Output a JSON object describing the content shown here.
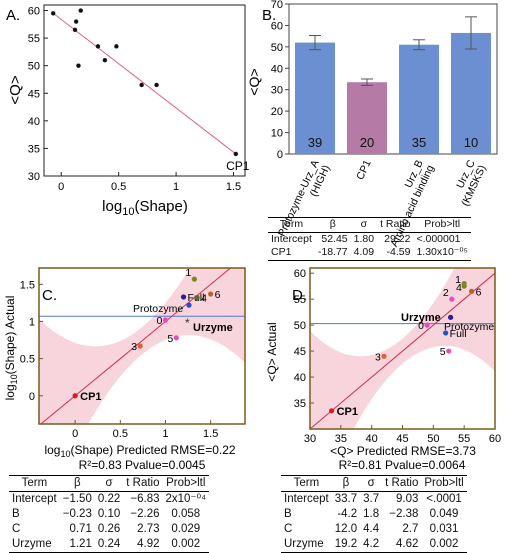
{
  "panels": {
    "A": {
      "letter": "A."
    },
    "B": {
      "letter": "B."
    },
    "C": {
      "letter": "C."
    },
    "D": {
      "letter": "D."
    }
  },
  "chart_data": [
    {
      "id": "A",
      "type": "scatter",
      "xlabel_prefix": "log",
      "xlabel_sub": "10",
      "xlabel_suffix": "(Shape)",
      "ylabel": "<Q>",
      "xlim": [
        -0.15,
        1.6
      ],
      "ylim": [
        30,
        61
      ],
      "x_ticks": [
        0,
        0.5,
        1,
        1.5
      ],
      "y_ticks": [
        30,
        35,
        40,
        45,
        50,
        55,
        60
      ],
      "points": [
        {
          "x": -0.07,
          "y": 59.5,
          "label": ""
        },
        {
          "x": 0.12,
          "y": 56.5,
          "label": ""
        },
        {
          "x": 0.13,
          "y": 58.0,
          "label": ""
        },
        {
          "x": 0.17,
          "y": 60.0,
          "label": ""
        },
        {
          "x": 0.15,
          "y": 50.0,
          "label": ""
        },
        {
          "x": 0.32,
          "y": 53.5,
          "label": ""
        },
        {
          "x": 0.38,
          "y": 51.0,
          "label": ""
        },
        {
          "x": 0.48,
          "y": 53.5,
          "label": ""
        },
        {
          "x": 0.7,
          "y": 46.5,
          "label": ""
        },
        {
          "x": 0.83,
          "y": 46.5,
          "label": ""
        },
        {
          "x": 1.52,
          "y": 34.0,
          "label": "CP1"
        }
      ],
      "fit_line": {
        "x": [
          -0.07,
          1.52
        ],
        "y": [
          59.5,
          34.0
        ]
      },
      "point_color": "#111111",
      "line_color": "#e0607a"
    },
    {
      "id": "B",
      "type": "bar",
      "ylabel": "<Q>",
      "ylim": [
        0,
        70
      ],
      "y_ticks": [
        0,
        10,
        20,
        30,
        40,
        50,
        60,
        70
      ],
      "categories": [
        "Protozyme-Urz_A\n(HIGH)",
        "CP1",
        "Urz_B\nAmino acid binding",
        "Urz_C\n(KMSKS)"
      ],
      "values": [
        52,
        33.5,
        51,
        56.5
      ],
      "errors": [
        3.3,
        1.5,
        2.3,
        7.5
      ],
      "counts": [
        "39",
        "20",
        "35",
        "10"
      ],
      "colors": [
        "#6b8fd0",
        "#b57aa5",
        "#6b8fd0",
        "#6b8fd0"
      ],
      "error_color": "#555555"
    },
    {
      "id": "C",
      "type": "scatter",
      "xlabel_prefix": "log",
      "xlabel_sub": "10",
      "xlabel_suffix": "(Shape) Predicted RMSE=0.22",
      "ylabel_prefix": "log",
      "ylabel_sub": "10",
      "ylabel_suffix": "(Shape) Actual",
      "xlim": [
        -0.4,
        1.88
      ],
      "ylim": [
        -0.38,
        1.72
      ],
      "x_ticks": [
        0,
        0.5,
        1,
        1.5
      ],
      "y_ticks": [
        0,
        0.5,
        1,
        1.5
      ],
      "mean_line_y": 1.07,
      "fit": {
        "x": [
          -0.4,
          1.88
        ],
        "y": [
          -0.4,
          1.88
        ]
      },
      "points": [
        {
          "x": 1.32,
          "y": 1.57,
          "label": "1",
          "color": "#7a8a20"
        },
        {
          "x": 1.2,
          "y": 1.33,
          "label": "Full",
          "color": "#2020a0"
        },
        {
          "x": 1.26,
          "y": 1.22,
          "label": "",
          "color": "#2050d0"
        },
        {
          "x": 1.35,
          "y": 1.32,
          "label": "4",
          "color": "#5a6a20"
        },
        {
          "x": 1.5,
          "y": 1.37,
          "label": "6",
          "color": "#b06a20"
        },
        {
          "x": 1.0,
          "y": 1.02,
          "label": "0",
          "color": "#e050c0"
        },
        {
          "x": 0.72,
          "y": 0.67,
          "label": "3",
          "color": "#e06030"
        },
        {
          "x": 1.12,
          "y": 0.78,
          "label": "5",
          "color": "#e050c0"
        },
        {
          "x": 0.0,
          "y": 0.0,
          "label": "CP1",
          "color": "#d02020"
        }
      ],
      "text_labels": [
        "Protozyme",
        "Urzyme"
      ],
      "stats": "R²=0.83 Pvalue=0.0045",
      "frame_color": "#7a5a20",
      "band_color": "#f6c6d0",
      "line_color": "#d03050",
      "mean_color": "#4a7ad0"
    },
    {
      "id": "D",
      "type": "scatter",
      "xlabel": "<Q> Predicted RMSE=3.73",
      "ylabel": "<Q> Actual",
      "xlim": [
        30,
        60
      ],
      "ylim": [
        30,
        61
      ],
      "x_ticks": [
        30,
        35,
        40,
        45,
        50,
        55,
        60
      ],
      "y_ticks": [
        35,
        40,
        45,
        50,
        55,
        60
      ],
      "mean_line_y": 50.3,
      "fit": {
        "x": [
          30,
          60
        ],
        "y": [
          30,
          60
        ]
      },
      "points": [
        {
          "x": 55.0,
          "y": 57.5,
          "label": "1",
          "color": "#7a8a20"
        },
        {
          "x": 55.0,
          "y": 58.0,
          "label": "",
          "color": "#7a8a20"
        },
        {
          "x": 56.2,
          "y": 56.5,
          "label": "6",
          "color": "#b06a20"
        },
        {
          "x": 53.0,
          "y": 55.0,
          "label": "2",
          "color": "#e050c0"
        },
        {
          "x": 52.8,
          "y": 51.5,
          "label": "",
          "color": "#2020a0"
        },
        {
          "x": 52.0,
          "y": 48.5,
          "label": "Full",
          "color": "#2050d0"
        },
        {
          "x": 49.0,
          "y": 50.0,
          "label": "0",
          "color": "#e050c0"
        },
        {
          "x": 42.0,
          "y": 44.0,
          "label": "3",
          "color": "#e06030"
        },
        {
          "x": 52.5,
          "y": 45.0,
          "label": "5",
          "color": "#e050c0"
        },
        {
          "x": 33.5,
          "y": 33.5,
          "label": "CP1",
          "color": "#d02020"
        }
      ],
      "text_labels": [
        "Urzyme",
        "Protozyme",
        "4"
      ],
      "stats": "R²=0.81 Pvalue=0.0064",
      "frame_color": "#7a5a20",
      "band_color": "#f6c6d0",
      "line_color": "#d03050",
      "mean_color": "#4a7ad0"
    }
  ],
  "tables": {
    "B": {
      "headers": [
        "Term",
        "β",
        "σ",
        "t Ratio",
        "Prob>ltl"
      ],
      "rows": [
        [
          "Intercept",
          "52.45",
          "1.80",
          "29.22",
          "<.000001"
        ],
        [
          "CP1",
          "-18.77",
          "4.09",
          "-4.59",
          "1.30x10⁻⁰⁵"
        ]
      ]
    },
    "C": {
      "headers": [
        "Term",
        "β",
        "σ",
        "t Ratio",
        "Prob>ltl"
      ],
      "rows": [
        [
          "Intercept",
          "−1.50",
          "0.22",
          "−6.83",
          "2x10⁻⁰⁴"
        ],
        [
          "B",
          "−0.23",
          "0.10",
          "−2.26",
          "0.058"
        ],
        [
          "C",
          "0.71",
          "0.26",
          "2.73",
          "0.029"
        ],
        [
          "Urzyme",
          "1.21",
          "0.24",
          "4.92",
          "0.002"
        ]
      ]
    },
    "D": {
      "headers": [
        "Term",
        "β",
        "σ",
        "t Ratio",
        "Prob>ltl"
      ],
      "rows": [
        [
          "Intercept",
          "33.7",
          "3.7",
          "9.03",
          "<.0001"
        ],
        [
          "B",
          "-4.2",
          "1.8",
          "−2.38",
          "0.049"
        ],
        [
          "C",
          "12.0",
          "4.4",
          "2.7",
          "0.031"
        ],
        [
          "Urzyme",
          "19.2",
          "4.2",
          "4.62",
          "0.002"
        ]
      ]
    }
  }
}
